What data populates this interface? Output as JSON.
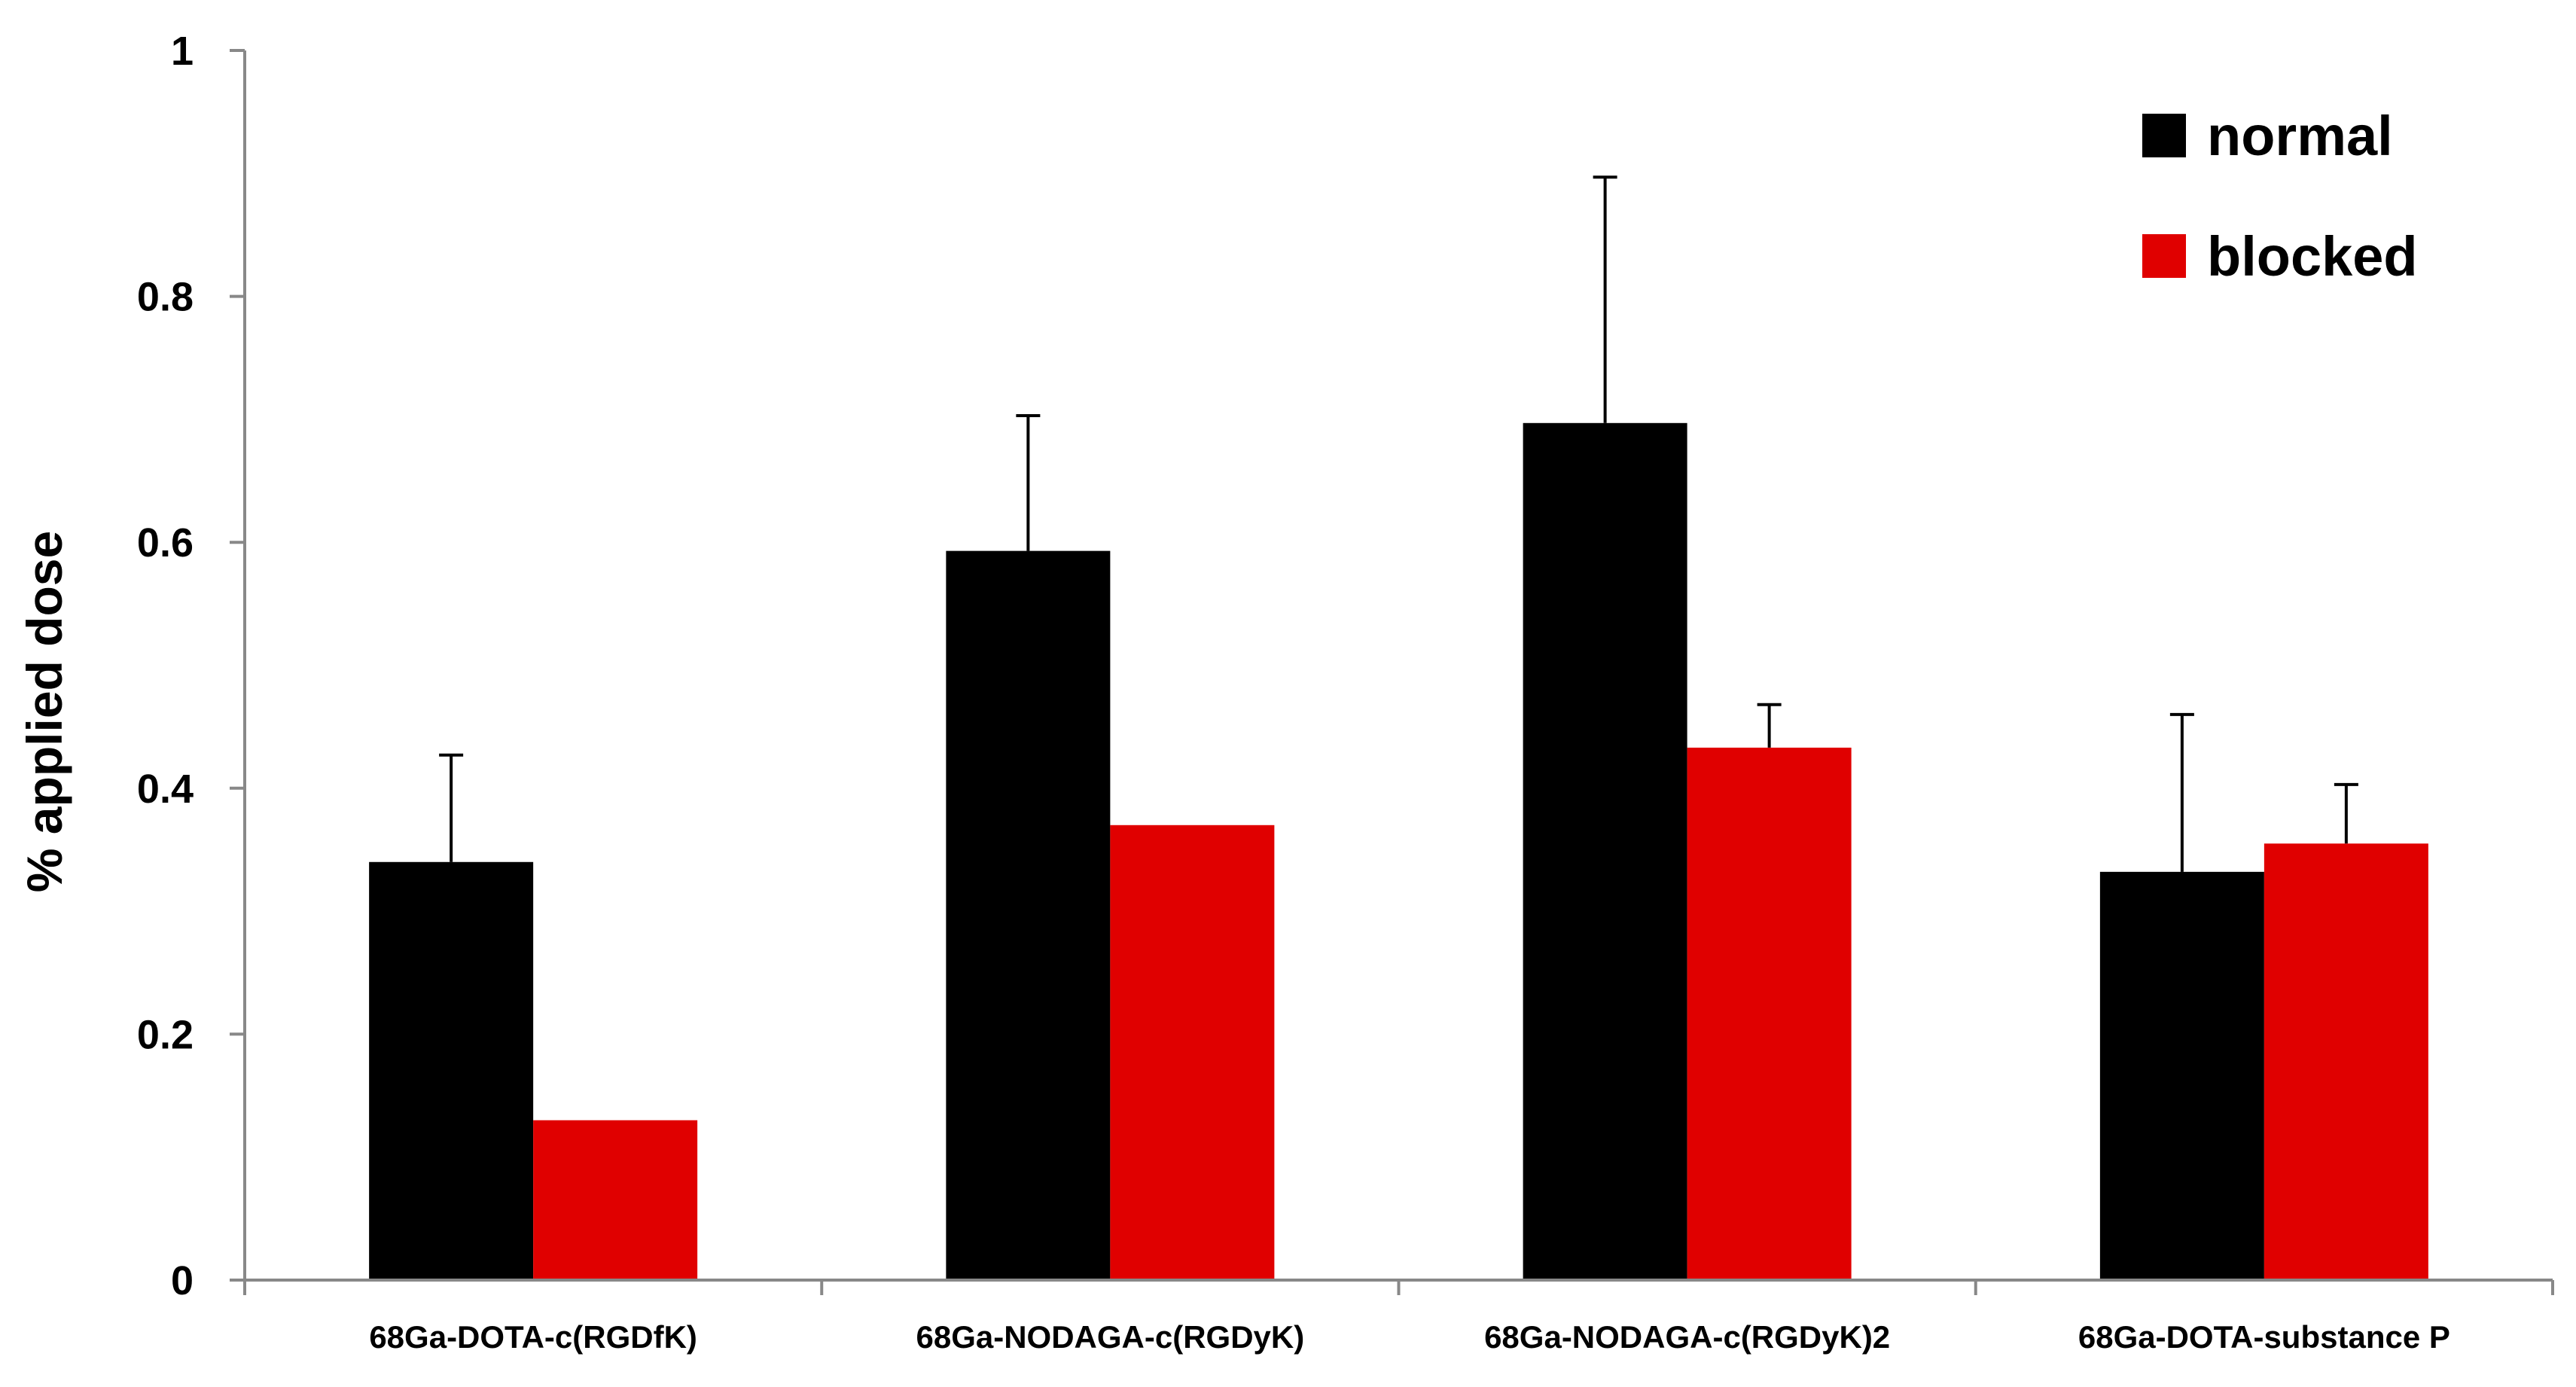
{
  "chart_data": {
    "type": "bar",
    "title": "",
    "xlabel": "",
    "ylabel": "% applied dose",
    "ylim": [
      0,
      1
    ],
    "yticks": [
      0,
      0.2,
      0.4,
      0.6,
      0.8,
      1
    ],
    "ytick_labels": [
      "0",
      "0.2",
      "0.4",
      "0.6",
      "0.8",
      "1"
    ],
    "grid": false,
    "legend_position": "top-right",
    "categories": [
      "68Ga-DOTA-c(RGDfK)",
      "68Ga-NODAGA-c(RGDyK)",
      "68Ga-NODAGA-c(RGDyK)2",
      "68Ga-DOTA-substance P"
    ],
    "series": [
      {
        "name": "normal",
        "color": "#000000",
        "values": [
          0.34,
          0.593,
          0.697,
          0.332
        ],
        "error_plus": [
          0.087,
          0.11,
          0.2,
          0.128
        ]
      },
      {
        "name": "blocked",
        "color": "#e00000",
        "values": [
          0.13,
          0.37,
          0.433,
          0.355
        ],
        "error_plus": [
          0,
          0,
          0.035,
          0.048
        ]
      }
    ]
  }
}
